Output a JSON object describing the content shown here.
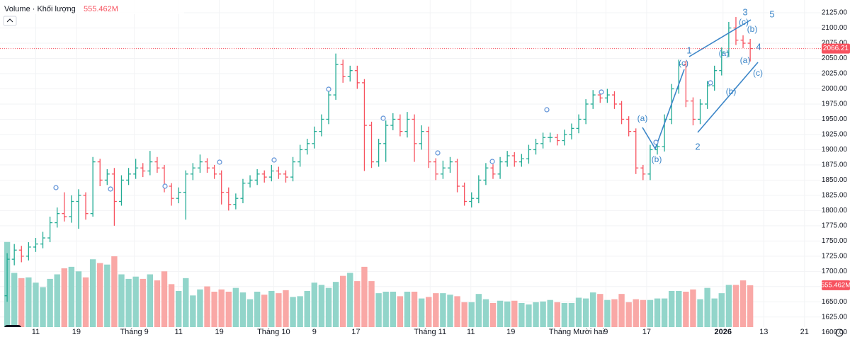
{
  "chart_data": {
    "type": "ohlc",
    "header": {
      "label": "Volume · Khối lượng",
      "volume_label": "555.462M"
    },
    "last_price_label": "2066.21",
    "volume_value_label": "555.462M",
    "up_color": "#22ab94",
    "down_color": "#f7525f",
    "volume_up_color": "#92d5ca",
    "volume_down_color": "#f9a8a6",
    "ylim": [
      1594.5,
      2146
    ],
    "xlim": [
      -1,
      114
    ],
    "volume_lim": [
      0,
      2650
    ],
    "yticks": [
      {
        "value": 1600,
        "label": "1600.00"
      },
      {
        "value": 1625,
        "label": "1625.00"
      },
      {
        "value": 1650,
        "label": "1650.00"
      },
      {
        "value": 1675,
        "label": "1675.00"
      },
      {
        "value": 1700,
        "label": "1700.00"
      },
      {
        "value": 1725,
        "label": "1725.00"
      },
      {
        "value": 1750,
        "label": "1750.00"
      },
      {
        "value": 1775,
        "label": "1775.00"
      },
      {
        "value": 1800,
        "label": "1800.00"
      },
      {
        "value": 1825,
        "label": "1825.00"
      },
      {
        "value": 1850,
        "label": "1850.00"
      },
      {
        "value": 1875,
        "label": "1875.00"
      },
      {
        "value": 1900,
        "label": "1900.00"
      },
      {
        "value": 1925,
        "label": "1925.00"
      },
      {
        "value": 1950,
        "label": "1950.00"
      },
      {
        "value": 1975,
        "label": "1975.00"
      },
      {
        "value": 2000,
        "label": "2000.00"
      },
      {
        "value": 2025,
        "label": "2025.00"
      },
      {
        "value": 2050,
        "label": "2050.00"
      },
      {
        "value": 2075,
        "label": "2075.00"
      },
      {
        "value": 2100,
        "label": "2100.00"
      },
      {
        "value": 2125,
        "label": "2125.00"
      }
    ],
    "xticks": [
      {
        "value": 4,
        "label": "11"
      },
      {
        "value": 9.7,
        "label": "19"
      },
      {
        "value": 17.8,
        "label": "Tháng 9"
      },
      {
        "value": 24,
        "label": "11"
      },
      {
        "value": 29.7,
        "label": "19"
      },
      {
        "value": 37.3,
        "label": "Tháng 10"
      },
      {
        "value": 43,
        "label": "9"
      },
      {
        "value": 48.8,
        "label": "17"
      },
      {
        "value": 59.2,
        "label": "Tháng 11"
      },
      {
        "value": 64.9,
        "label": "11"
      },
      {
        "value": 70.5,
        "label": "19"
      },
      {
        "value": 79.7,
        "label": "Tháng Mười hai"
      },
      {
        "value": 83.8,
        "label": "9"
      },
      {
        "value": 89.5,
        "label": "17"
      },
      {
        "value": 100.2,
        "label": "2026"
      },
      {
        "value": 105.9,
        "label": "13"
      },
      {
        "value": 111.6,
        "label": "21"
      }
    ],
    "open": [
      1660,
      1720,
      1735,
      1725,
      1740,
      1745,
      1755,
      1780,
      1795,
      1790,
      1815,
      1825,
      1795,
      1880,
      1850,
      1860,
      1815,
      1850,
      1860,
      1870,
      1865,
      1880,
      1870,
      1840,
      1820,
      1830,
      1860,
      1870,
      1880,
      1870,
      1860,
      1830,
      1810,
      1820,
      1845,
      1850,
      1860,
      1855,
      1865,
      1860,
      1855,
      1880,
      1900,
      1910,
      1930,
      1950,
      1990,
      2040,
      2020,
      2030,
      2010,
      1940,
      1880,
      1910,
      1940,
      1950,
      1930,
      1950,
      1910,
      1930,
      1880,
      1860,
      1870,
      1880,
      1840,
      1815,
      1820,
      1850,
      1870,
      1860,
      1880,
      1890,
      1880,
      1885,
      1900,
      1910,
      1920,
      1920,
      1915,
      1925,
      1935,
      1950,
      1975,
      1990,
      1985,
      1990,
      1975,
      1950,
      1930,
      1870,
      1860,
      1900,
      1905,
      1950,
      2000,
      2040,
      1980,
      1950,
      1975,
      2005,
      2030,
      2060,
      2100,
      2080,
      2075
    ],
    "high": [
      1730,
      1745,
      1742,
      1748,
      1755,
      1765,
      1790,
      1805,
      1830,
      1825,
      1835,
      1830,
      1888,
      1885,
      1868,
      1870,
      1858,
      1870,
      1885,
      1878,
      1898,
      1888,
      1875,
      1845,
      1838,
      1866,
      1878,
      1892,
      1886,
      1875,
      1866,
      1838,
      1828,
      1852,
      1858,
      1868,
      1866,
      1875,
      1872,
      1866,
      1888,
      1908,
      1918,
      1938,
      1958,
      2000,
      2058,
      2048,
      2038,
      2038,
      2016,
      1946,
      1918,
      1948,
      1960,
      1958,
      1962,
      1958,
      1940,
      1938,
      1886,
      1882,
      1888,
      1885,
      1846,
      1830,
      1858,
      1878,
      1876,
      1888,
      1898,
      1896,
      1893,
      1908,
      1918,
      1928,
      1928,
      1926,
      1933,
      1943,
      1958,
      1983,
      1998,
      1996,
      2000,
      1996,
      1980,
      1955,
      1935,
      1875,
      1908,
      1913,
      1958,
      2008,
      2048,
      2046,
      1986,
      1983,
      2013,
      2038,
      2068,
      2110,
      2118,
      2088,
      2082
    ],
    "low": [
      1650,
      1710,
      1715,
      1718,
      1732,
      1738,
      1748,
      1772,
      1782,
      1780,
      1770,
      1785,
      1790,
      1840,
      1842,
      1775,
      1808,
      1842,
      1852,
      1855,
      1858,
      1862,
      1830,
      1808,
      1812,
      1785,
      1850,
      1862,
      1862,
      1852,
      1810,
      1800,
      1802,
      1812,
      1838,
      1842,
      1846,
      1848,
      1852,
      1846,
      1848,
      1872,
      1892,
      1902,
      1922,
      1942,
      1982,
      2010,
      2012,
      2000,
      1865,
      1870,
      1872,
      1880,
      1932,
      1922,
      1920,
      1880,
      1900,
      1870,
      1850,
      1852,
      1862,
      1830,
      1808,
      1805,
      1812,
      1842,
      1852,
      1852,
      1872,
      1872,
      1872,
      1877,
      1892,
      1902,
      1912,
      1907,
      1907,
      1917,
      1927,
      1942,
      1967,
      1977,
      1977,
      1967,
      1942,
      1922,
      1860,
      1850,
      1850,
      1892,
      1897,
      1942,
      1992,
      1970,
      1940,
      1942,
      1967,
      1997,
      2022,
      2052,
      2072,
      2067,
      2045
    ],
    "close": [
      1720,
      1735,
      1725,
      1740,
      1745,
      1755,
      1780,
      1795,
      1790,
      1815,
      1825,
      1795,
      1880,
      1850,
      1860,
      1815,
      1850,
      1860,
      1870,
      1865,
      1880,
      1870,
      1840,
      1820,
      1830,
      1860,
      1870,
      1880,
      1870,
      1860,
      1830,
      1810,
      1820,
      1845,
      1850,
      1860,
      1855,
      1865,
      1860,
      1855,
      1880,
      1900,
      1910,
      1930,
      1950,
      1990,
      2040,
      2020,
      2030,
      2010,
      1940,
      1880,
      1910,
      1940,
      1950,
      1930,
      1950,
      1910,
      1930,
      1880,
      1860,
      1870,
      1880,
      1840,
      1815,
      1820,
      1850,
      1870,
      1860,
      1880,
      1890,
      1880,
      1885,
      1900,
      1910,
      1920,
      1920,
      1915,
      1925,
      1935,
      1950,
      1975,
      1990,
      1985,
      1990,
      1975,
      1950,
      1930,
      1870,
      1860,
      1900,
      1905,
      1950,
      2000,
      2040,
      1980,
      1950,
      1975,
      2005,
      2030,
      2060,
      2100,
      2080,
      2075,
      2066.21
    ],
    "volume": [
      1130,
      720,
      650,
      660,
      590,
      530,
      640,
      700,
      780,
      800,
      740,
      660,
      900,
      850,
      830,
      940,
      700,
      640,
      670,
      640,
      700,
      620,
      740,
      570,
      480,
      650,
      420,
      500,
      540,
      470,
      500,
      470,
      520,
      460,
      370,
      470,
      430,
      480,
      450,
      490,
      400,
      410,
      480,
      590,
      560,
      520,
      600,
      680,
      720,
      610,
      800,
      610,
      450,
      470,
      470,
      410,
      470,
      470,
      380,
      400,
      450,
      450,
      430,
      410,
      330,
      330,
      440,
      370,
      320,
      350,
      340,
      350,
      320,
      300,
      330,
      340,
      360,
      330,
      320,
      320,
      390,
      380,
      460,
      440,
      360,
      370,
      440,
      330,
      370,
      360,
      360,
      380,
      380,
      480,
      480,
      470,
      500,
      370,
      520,
      380,
      450,
      560,
      560,
      620,
      555.462
    ],
    "annotations": [
      "(a)",
      "(b)",
      "(c)",
      "1",
      "2",
      "(a)",
      "(b)",
      "3",
      "(c)",
      "(b)",
      "(a)",
      "4",
      "(c)",
      "5"
    ]
  }
}
